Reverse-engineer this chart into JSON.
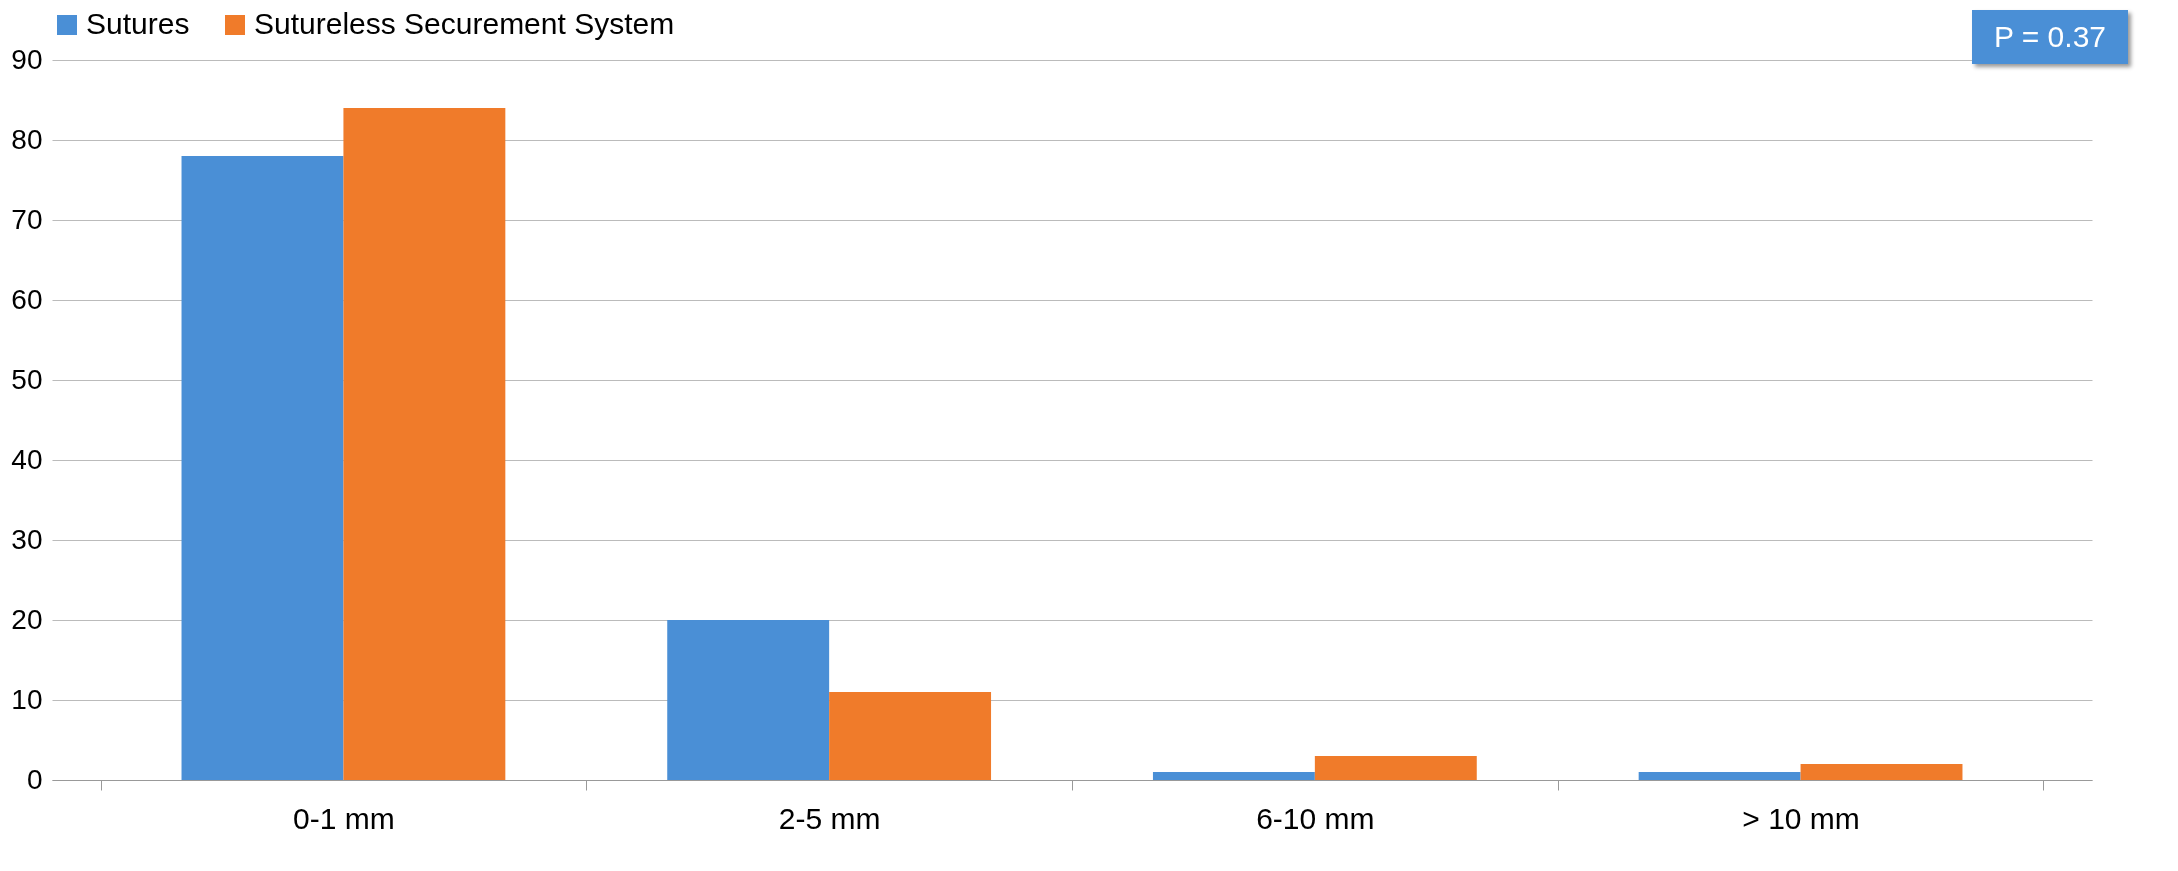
{
  "chart_data": {
    "type": "bar",
    "categories": [
      "0-1 mm",
      "2-5 mm",
      "6-10 mm",
      "> 10 mm"
    ],
    "series": [
      {
        "name": "Sutures",
        "color": "#4a8fd6",
        "values": [
          78,
          20,
          1,
          1
        ]
      },
      {
        "name": "Sutureless Securement System",
        "color": "#f07b2a",
        "values": [
          84,
          11,
          3,
          2
        ]
      }
    ],
    "ylim": [
      0,
      90
    ],
    "yticks": [
      0,
      10,
      20,
      30,
      40,
      50,
      60,
      70,
      80,
      90
    ],
    "grid": "y",
    "legend": "top",
    "annotations": [
      "P = 0.37"
    ]
  }
}
